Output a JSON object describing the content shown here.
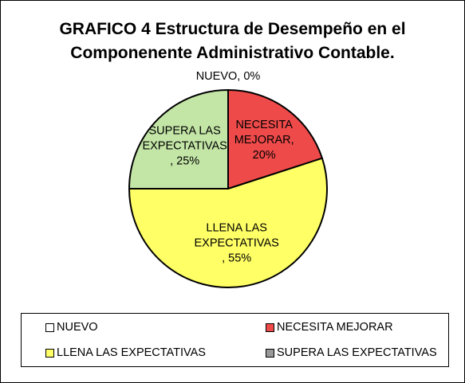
{
  "chart_data": {
    "type": "pie",
    "title": "GRAFICO 4 Estructura de Desempeño en el Componenente Administrativo Contable.",
    "title_lines": [
      "GRAFICO 4 Estructura de Desempeño en el",
      "Componenente Administrativo Contable."
    ],
    "categories": [
      "NUEVO",
      "NECESITA MEJORAR",
      "LLENA LAS EXPECTATIVAS",
      "SUPERA LAS EXPECTATIVAS"
    ],
    "values": [
      0,
      20,
      55,
      25
    ],
    "unit": "%",
    "colors": [
      "#ffffff",
      "#ef4a4a",
      "#ffff66",
      "#c3e5a6"
    ],
    "data_labels": [
      [
        "NUEVO, 0%"
      ],
      [
        "NECESITA",
        "MEJORAR,",
        "20%"
      ],
      [
        "LLENA LAS",
        "EXPECTATIVAS",
        ", 55%"
      ],
      [
        "SUPERA LAS",
        "EXPECTATIVAS",
        ", 25%"
      ]
    ],
    "legend_position": "bottom",
    "legend": [
      {
        "label": "NUEVO",
        "color": "#ffffff"
      },
      {
        "label": "NECESITA MEJORAR",
        "color": "#ef4a4a"
      },
      {
        "label": "LLENA LAS EXPECTATIVAS",
        "color": "#ffff66"
      },
      {
        "label": "SUPERA LAS EXPECTATIVAS",
        "color": "#999999"
      }
    ]
  }
}
